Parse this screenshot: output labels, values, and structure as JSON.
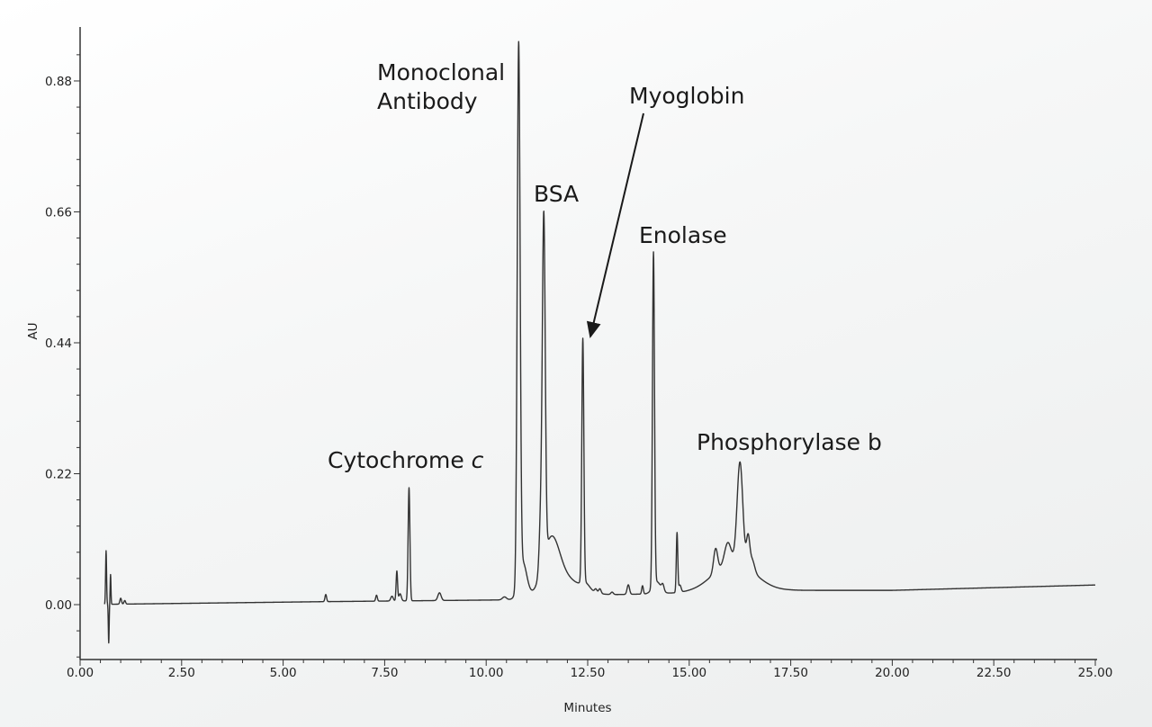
{
  "chart_data": {
    "type": "line",
    "xlabel": "Minutes",
    "ylabel": "AU",
    "xlim": [
      0,
      25
    ],
    "ylim": [
      -0.09,
      0.97
    ],
    "x_ticks": [
      "0.00",
      "2.50",
      "5.00",
      "7.50",
      "10.00",
      "12.50",
      "15.00",
      "17.50",
      "20.00",
      "22.50",
      "25.00"
    ],
    "y_ticks": [
      "0.00",
      "0.22",
      "0.44",
      "0.66",
      "0.88"
    ],
    "x_minor_step": 0.5,
    "y_minor_step": 0.044,
    "grid": false,
    "line_color": "#333333",
    "baseline": [
      [
        0,
        0
      ],
      [
        6,
        0.005
      ],
      [
        10.5,
        0.008
      ],
      [
        12.6,
        0.016
      ],
      [
        14,
        0.018
      ],
      [
        15,
        0.02
      ],
      [
        17.5,
        0.024
      ],
      [
        20,
        0.024
      ],
      [
        25,
        0.033
      ]
    ],
    "peaks_columns": [
      "retention_time_min",
      "height_AU",
      "sigma_min"
    ],
    "peaks": [
      [
        0.64,
        0.09,
        0.012
      ],
      [
        0.705,
        -0.065,
        0.01
      ],
      [
        0.75,
        0.05,
        0.01
      ],
      [
        1.0,
        0.01,
        0.02
      ],
      [
        1.1,
        0.006,
        0.02
      ],
      [
        6.05,
        0.012,
        0.02
      ],
      [
        7.3,
        0.01,
        0.02
      ],
      [
        7.68,
        0.008,
        0.03
      ],
      [
        7.8,
        0.05,
        0.018
      ],
      [
        7.88,
        0.012,
        0.03
      ],
      [
        8.1,
        0.19,
        0.022
      ],
      [
        8.85,
        0.013,
        0.04
      ],
      [
        10.45,
        0.005,
        0.05
      ],
      [
        10.8,
        0.9,
        0.035
      ],
      [
        10.9,
        0.06,
        0.1
      ],
      [
        11.35,
        0.1,
        0.04
      ],
      [
        11.42,
        0.56,
        0.035
      ],
      [
        11.6,
        0.08,
        0.2
      ],
      [
        11.9,
        0.03,
        0.4
      ],
      [
        12.38,
        0.41,
        0.025
      ],
      [
        12.45,
        0.01,
        0.1
      ],
      [
        12.7,
        0.006,
        0.03
      ],
      [
        12.8,
        0.008,
        0.03
      ],
      [
        13.1,
        0.004,
        0.03
      ],
      [
        13.5,
        0.016,
        0.03
      ],
      [
        13.85,
        0.014,
        0.02
      ],
      [
        14.12,
        0.56,
        0.025
      ],
      [
        14.2,
        0.02,
        0.1
      ],
      [
        14.35,
        0.01,
        0.03
      ],
      [
        14.7,
        0.1,
        0.018
      ],
      [
        14.77,
        0.012,
        0.03
      ],
      [
        16.1,
        0.05,
        0.5
      ],
      [
        15.65,
        0.04,
        0.05
      ],
      [
        15.95,
        0.035,
        0.08
      ],
      [
        16.25,
        0.17,
        0.07
      ],
      [
        16.45,
        0.05,
        0.04
      ],
      [
        16.55,
        0.02,
        0.06
      ]
    ],
    "annotations": {
      "monoclonal_line1": "Monoclonal",
      "monoclonal_line2": "Antibody",
      "bsa": "BSA",
      "myoglobin": "Myoglobin",
      "enolase": "Enolase",
      "cytochrome": "Cytochrome ",
      "cytochrome_italic": "c",
      "phosphorylase": "Phosphorylase b"
    }
  }
}
